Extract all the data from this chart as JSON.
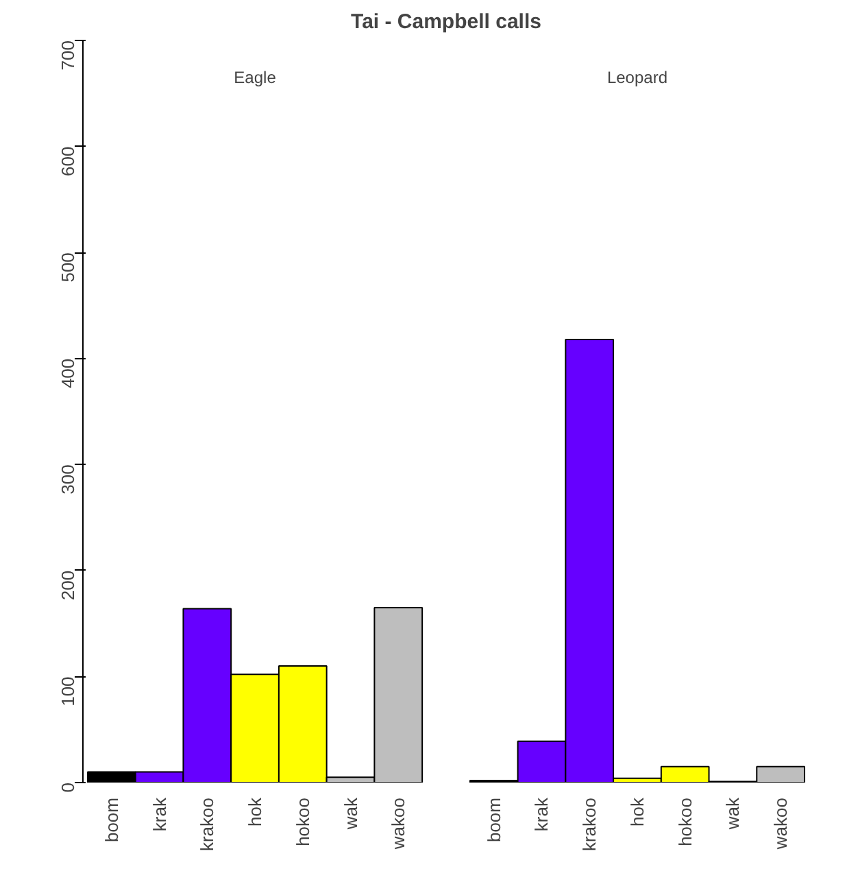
{
  "chart_data": {
    "type": "bar",
    "title": "Tai - Campbell calls",
    "categories": [
      "boom",
      "krak",
      "krakoo",
      "hok",
      "hokoo",
      "wak",
      "wakoo",
      null,
      "boom",
      "krak",
      "krakoo",
      "hok",
      "hokoo",
      "wak",
      "wakoo"
    ],
    "values": [
      10,
      10,
      164,
      102,
      110,
      5,
      165,
      null,
      2,
      39,
      418,
      4,
      15,
      1,
      15
    ],
    "colors": [
      "#000000",
      "#6600ff",
      "#6600ff",
      "#ffff00",
      "#ffff00",
      "#bebebe",
      "#bebebe",
      null,
      "#000000",
      "#6600ff",
      "#6600ff",
      "#ffff00",
      "#ffff00",
      "#bebebe",
      "#bebebe"
    ],
    "annotations": [
      "Eagle",
      "Leopard"
    ],
    "ylim": [
      0,
      700
    ],
    "yticks": [
      0,
      100,
      200,
      300,
      400,
      500,
      600,
      700
    ],
    "grid": false
  }
}
